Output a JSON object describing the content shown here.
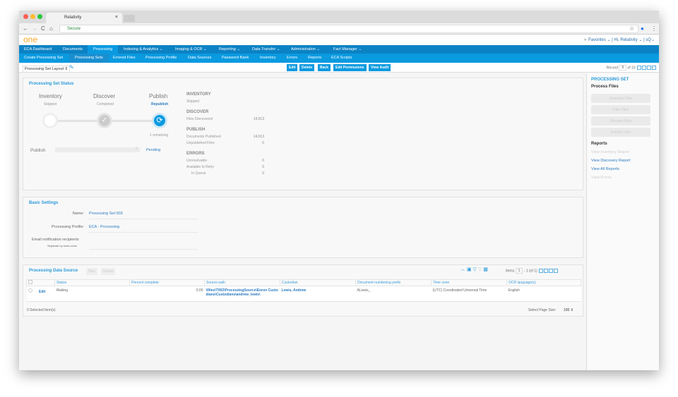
{
  "browser": {
    "tab_title": "Relativity",
    "secure_label": "Secure"
  },
  "header": {
    "logo": "one",
    "favorites": "Favorites ⌄",
    "greeting": "| Hi, Relativity ⌄",
    "search": "| sQ⌄"
  },
  "nav_primary": [
    "ECA Dashboard",
    "Documents",
    "Processing",
    "Indexing & Analytics ⌄",
    "Imaging & OCR ⌄",
    "Reporting ⌄",
    "Data Transfer ⌄",
    "Administration ⌄",
    "Fact Manager ⌄"
  ],
  "nav_secondary": [
    "Create Processing Set",
    "Processing Sets",
    "Errored Files",
    "Processing Profile",
    "Data Sources",
    "Password Bank",
    "Inventory",
    "Errors",
    "Reports",
    "ECA Scripts"
  ],
  "toolbar": {
    "layout": "Processing Set Layout ⇕",
    "buttons": [
      "Edit",
      "Delete",
      "Back",
      "Edit Permissions",
      "View Audit"
    ],
    "record_label": "Record",
    "record_value": "8",
    "record_of": "of 10"
  },
  "status": {
    "title": "Processing Set Status",
    "steps": [
      {
        "name": "Inventory",
        "state": "Skipped"
      },
      {
        "name": "Discover",
        "state": "Completed"
      },
      {
        "name": "Publish",
        "state": "Republish",
        "note": "1 remaining"
      }
    ],
    "publish_label": "Publish",
    "publish_state": "Pending",
    "summary": [
      {
        "heading": "INVENTORY",
        "rows": [
          {
            "label": "Skipped",
            "value": ""
          }
        ]
      },
      {
        "heading": "DISCOVER",
        "rows": [
          {
            "label": "Files Discovered",
            "value": "14,513"
          }
        ]
      },
      {
        "heading": "PUBLISH",
        "rows": [
          {
            "label": "Documents Published",
            "value": "14,513"
          },
          {
            "label": "Unpublished Files",
            "value": "0"
          }
        ]
      },
      {
        "heading": "ERRORS",
        "rows": [
          {
            "label": "Unresolvable",
            "value": "0"
          },
          {
            "label": "Available to Retry",
            "value": "0"
          },
          {
            "label": "In Queue",
            "value": "0"
          }
        ]
      }
    ]
  },
  "basic": {
    "title": "Basic Settings",
    "name_label": "Name:",
    "name": "Processing Set 003",
    "profile_label": "Processing Profile:",
    "profile": "ECA - Processing",
    "email_label": "Email notification recipients",
    "email_hint": "Separate by semi-colon"
  },
  "datasource": {
    "title": "Processing Data Source",
    "new": "New",
    "delete": "Delete",
    "items_label": "Items",
    "items_value": "1",
    "items_range": "- 1 (of 1)",
    "columns": [
      "Status",
      "Percent complete",
      "Source path",
      "Custodian",
      "Document numbering prefix",
      "Time zone",
      "OCR language(s)"
    ],
    "rows": [
      {
        "edit": "Edit",
        "status": "Waiting",
        "percent": "0.00",
        "path": "\\\\files\\T002\\ProcessingSource\\Enron Custodians\\Custodians\\andrew_lewis\\",
        "custodian": "Lewis, Andrew",
        "prefix": "ALewis_",
        "timezone": "(UTC) Coordinated Universal Time",
        "ocr": "English"
      }
    ],
    "selected": "0  Selected Item(s)",
    "page_size_label": "Select Page Size:",
    "page_size": "100 ⇕"
  },
  "side": {
    "title": "PROCESSING SET",
    "process_files": "Process Files",
    "buttons": [
      "Inventory Files",
      "Filter Files",
      "Discover Files",
      "Publish Files"
    ],
    "reports": "Reports",
    "links": [
      {
        "label": "View Inventory Report",
        "enabled": false
      },
      {
        "label": "View Discovery Report",
        "enabled": true
      },
      {
        "label": "View All Reports",
        "enabled": true
      },
      {
        "label": "View Errors",
        "enabled": false
      }
    ]
  }
}
